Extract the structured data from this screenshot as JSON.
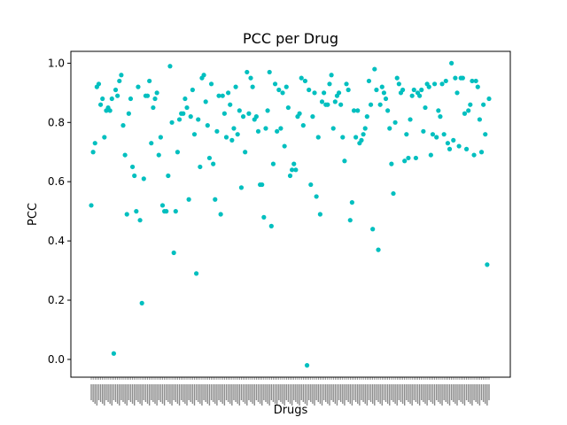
{
  "chart_data": {
    "type": "scatter",
    "title": "PCC per Drug",
    "xlabel": "Drugs",
    "ylabel": "PCC",
    "ylim": [
      -0.06,
      1.04
    ],
    "yticks": [
      "0.0",
      "0.2",
      "0.4",
      "0.6",
      "0.8",
      "1.0"
    ],
    "grid": false,
    "marker_color": "#00bfbf",
    "series": [
      {
        "values": [
          0.52,
          0.7,
          0.73,
          0.92,
          0.93,
          0.86,
          0.88,
          0.75,
          0.84,
          0.85,
          0.84,
          0.88,
          0.02,
          0.91,
          0.89,
          0.94,
          0.96,
          0.79,
          0.69,
          0.49,
          0.83,
          0.88,
          0.65,
          0.62,
          0.5,
          0.92,
          0.47,
          0.19,
          0.61,
          0.89,
          0.89,
          0.94,
          0.73,
          0.85,
          0.88,
          0.9,
          0.69,
          0.75,
          0.52,
          0.5,
          0.5,
          0.62,
          0.99,
          0.8,
          0.36,
          0.5,
          0.7,
          0.81,
          0.83,
          0.83,
          0.88,
          0.85,
          0.54,
          0.82,
          0.91,
          0.76,
          0.29,
          0.81,
          0.65,
          0.95,
          0.96,
          0.87,
          0.79,
          0.68,
          0.93,
          0.66,
          0.54,
          0.77,
          0.89,
          0.49,
          0.89,
          0.83,
          0.75,
          0.9,
          0.86,
          0.74,
          0.78,
          0.92,
          0.76,
          0.84,
          0.58,
          0.82,
          0.7,
          0.97,
          0.83,
          0.95,
          0.92,
          0.81,
          0.82,
          0.77,
          0.59,
          0.59,
          0.48,
          0.78,
          0.84,
          0.97,
          0.45,
          0.66,
          0.93,
          0.77,
          0.91,
          0.78,
          0.9,
          0.72,
          0.92,
          0.85,
          0.62,
          0.64,
          0.66,
          0.64,
          0.82,
          0.83,
          0.95,
          0.79,
          0.94,
          -0.02,
          0.91,
          0.59,
          0.82,
          0.9,
          0.55,
          0.75,
          0.49,
          0.87,
          0.9,
          0.86,
          0.86,
          0.93,
          0.96,
          0.78,
          0.87,
          0.89,
          0.9,
          0.86,
          0.75,
          0.67,
          0.93,
          0.91,
          0.47,
          0.53,
          0.84,
          0.75,
          0.84,
          0.73,
          0.74,
          0.76,
          0.78,
          0.82,
          0.94,
          0.86,
          0.44,
          0.98,
          0.91,
          0.37,
          0.86,
          0.92,
          0.9,
          0.88,
          0.84,
          0.78,
          0.66,
          0.56,
          0.8,
          0.95,
          0.93,
          0.9,
          0.91,
          0.67,
          0.76,
          0.68,
          0.81,
          0.89,
          0.91,
          0.68,
          0.9,
          0.89,
          0.91,
          0.77,
          0.85,
          0.93,
          0.92,
          0.69,
          0.76,
          0.93,
          0.75,
          0.84,
          0.82,
          0.93,
          0.76,
          0.94,
          0.73,
          0.71,
          1.0,
          0.74,
          0.95,
          0.9,
          0.72,
          0.95,
          0.95,
          0.83,
          0.71,
          0.84,
          0.86,
          0.94,
          0.69,
          0.94,
          0.92,
          0.81,
          0.7,
          0.86,
          0.76,
          0.32,
          0.88
        ]
      }
    ]
  }
}
